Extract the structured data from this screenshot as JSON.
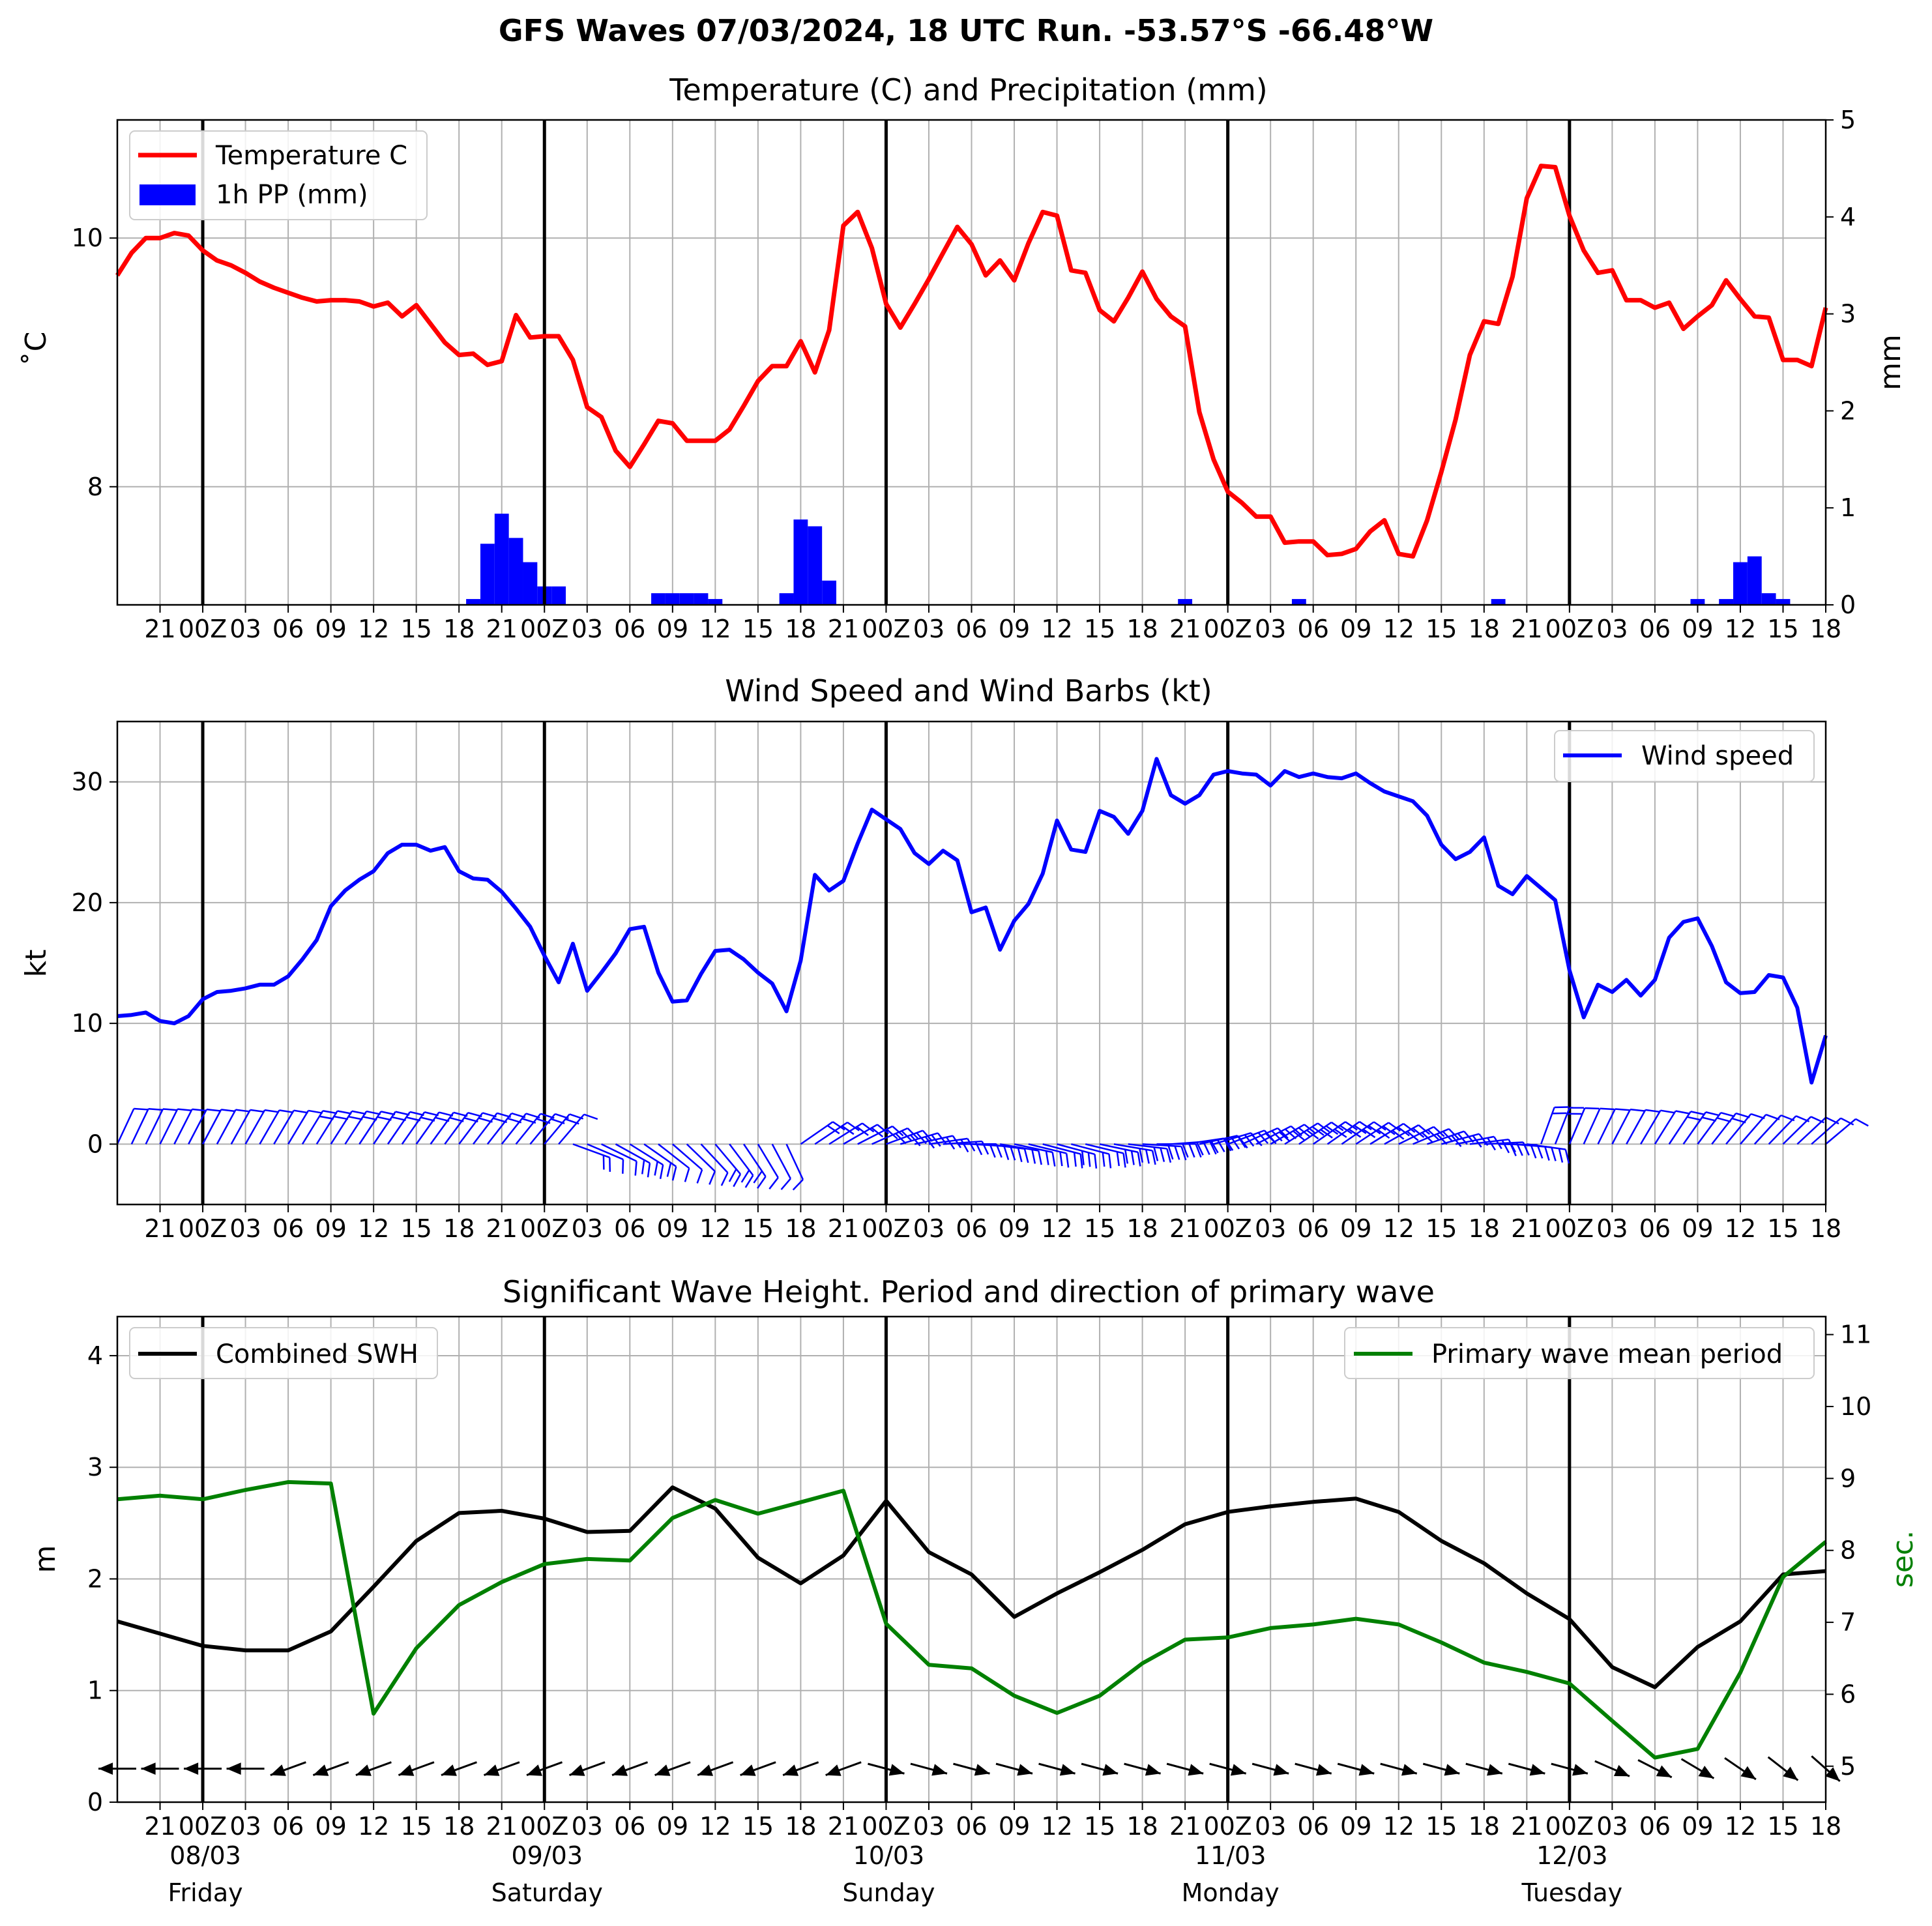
{
  "figure_title": "GFS Waves 07/03/2024, 18 UTC Run. -53.57°S -66.48°W",
  "colors": {
    "temperature": "#ff0000",
    "precipitation": "#0000ff",
    "wind": "#0000ff",
    "swh": "#000000",
    "period": "#008000",
    "grid": "#b0b0b0",
    "day_line": "#000000"
  },
  "time_axis": {
    "tick_labels_hourly": [
      "21",
      "00Z",
      "03",
      "06",
      "09",
      "12",
      "15",
      "18",
      "21",
      "00Z",
      "03",
      "06",
      "09",
      "12",
      "15",
      "18",
      "21",
      "00Z",
      "03",
      "06",
      "09",
      "12",
      "15",
      "18",
      "21",
      "00Z",
      "03",
      "06",
      "09",
      "12",
      "15",
      "18",
      "21",
      "00Z",
      "03",
      "06",
      "09",
      "12",
      "15",
      "18"
    ],
    "tick_hours": [
      3,
      6,
      9,
      12,
      15,
      18,
      21,
      24,
      27,
      30,
      33,
      36,
      39,
      42,
      45,
      48,
      51,
      54,
      57,
      60,
      63,
      66,
      69,
      72,
      75,
      78,
      81,
      84,
      87,
      90,
      93,
      96,
      99,
      102,
      105,
      108,
      111,
      114,
      117,
      120
    ],
    "xlim_hours": [
      0,
      120
    ],
    "day_boundaries_hours": [
      6,
      30,
      54,
      78,
      102
    ],
    "dates": [
      "08/03",
      "09/03",
      "10/03",
      "11/03",
      "12/03"
    ],
    "weekdays": [
      "Friday",
      "Saturday",
      "Sunday",
      "Monday",
      "Tuesday"
    ]
  },
  "chart_data": [
    {
      "type": "line",
      "title": "Temperature (C) and Precipitation (mm)",
      "ylabel": "$^\\circ$C",
      "ylabel_text": "˚C",
      "y2label": "mm",
      "ylim": [
        7.05,
        10.95
      ],
      "yticks": [
        "8",
        "10"
      ],
      "ytick_values": [
        8,
        10
      ],
      "y2lim": [
        0,
        5
      ],
      "y2ticks": [
        "0",
        "1",
        "2",
        "3",
        "4",
        "5"
      ],
      "legend": {
        "placement": "top-left",
        "entries": [
          "Temperature C",
          "1h PP (mm)"
        ]
      },
      "grid": true,
      "series": [
        {
          "name": "Temperature C",
          "x_start": 0,
          "x_step": 1,
          "values": [
            9.7,
            9.88,
            10.0,
            10.0,
            10.04,
            10.02,
            9.9,
            9.82,
            9.78,
            9.72,
            9.65,
            9.6,
            9.56,
            9.52,
            9.49,
            9.5,
            9.5,
            9.49,
            9.45,
            9.48,
            9.37,
            9.46,
            9.31,
            9.16,
            9.06,
            9.07,
            8.98,
            9.01,
            9.38,
            9.2,
            9.21,
            9.21,
            9.02,
            8.64,
            8.56,
            8.29,
            8.16,
            8.34,
            8.53,
            8.51,
            8.37,
            8.37,
            8.37,
            8.46,
            8.65,
            8.85,
            8.97,
            8.97,
            9.17,
            8.92,
            9.26,
            10.1,
            10.21,
            9.92,
            9.47,
            9.28,
            9.47,
            9.67,
            9.88,
            10.09,
            9.95,
            9.7,
            9.82,
            9.66,
            9.96,
            10.21,
            10.18,
            9.74,
            9.72,
            9.42,
            9.33,
            9.52,
            9.73,
            9.51,
            9.37,
            9.29,
            8.6,
            8.22,
            7.96,
            7.87,
            7.76,
            7.76,
            7.55,
            7.56,
            7.56,
            7.45,
            7.46,
            7.5,
            7.64,
            7.73,
            7.46,
            7.44,
            7.73,
            8.12,
            8.54,
            9.06,
            9.33,
            9.31,
            9.69,
            10.32,
            10.58,
            10.57,
            10.18,
            9.9,
            9.72,
            9.74,
            9.5,
            9.5,
            9.44,
            9.48,
            9.27,
            9.37,
            9.46,
            9.66,
            9.51,
            9.37,
            9.36,
            9.02,
            9.02,
            8.97,
            9.44
          ]
        },
        {
          "name": "1h PP (mm)",
          "type": "bar",
          "x": [
            25,
            26,
            27,
            28,
            29,
            30,
            31,
            38,
            39,
            40,
            41,
            42,
            47,
            48,
            49,
            50,
            75,
            83,
            97,
            111,
            113,
            114,
            115,
            116,
            117
          ],
          "values": [
            0.06,
            0.63,
            0.94,
            0.69,
            0.44,
            0.19,
            0.19,
            0.12,
            0.12,
            0.12,
            0.12,
            0.06,
            0.12,
            0.88,
            0.81,
            0.25,
            0.06,
            0.06,
            0.06,
            0.06,
            0.06,
            0.44,
            0.5,
            0.12,
            0.06
          ]
        }
      ]
    },
    {
      "type": "line",
      "title": "Wind Speed and Wind Barbs (kt)",
      "ylabel": "kt",
      "ylim": [
        -5,
        35
      ],
      "yticks": [
        "0",
        "10",
        "20",
        "30"
      ],
      "ytick_values": [
        0,
        10,
        20,
        30
      ],
      "legend": {
        "placement": "top-right",
        "entries": [
          "Wind speed"
        ]
      },
      "grid": true,
      "series": [
        {
          "name": "Wind speed",
          "x_start": 0,
          "x_step": 1,
          "values": [
            10.6,
            10.7,
            10.9,
            10.2,
            10.0,
            10.6,
            12.0,
            12.6,
            12.7,
            12.9,
            13.2,
            13.2,
            13.9,
            15.3,
            16.9,
            19.7,
            21.0,
            21.9,
            22.6,
            24.1,
            24.8,
            24.8,
            24.3,
            24.6,
            22.6,
            22.0,
            21.9,
            20.9,
            19.5,
            18.0,
            15.6,
            13.4,
            16.6,
            12.7,
            14.2,
            15.8,
            17.8,
            18.0,
            14.2,
            11.8,
            11.9,
            14.1,
            16.0,
            16.1,
            15.3,
            14.2,
            13.3,
            11.0,
            15.2,
            22.3,
            21.0,
            21.8,
            24.9,
            27.7,
            26.9,
            26.1,
            24.1,
            23.2,
            24.3,
            23.5,
            19.2,
            19.6,
            16.1,
            18.5,
            19.9,
            22.4,
            26.8,
            24.4,
            24.2,
            27.6,
            27.1,
            25.7,
            27.6,
            31.9,
            28.9,
            28.2,
            28.9,
            30.6,
            30.9,
            30.7,
            30.6,
            29.7,
            30.9,
            30.4,
            30.7,
            30.4,
            30.3,
            30.7,
            29.9,
            29.2,
            28.8,
            28.4,
            27.2,
            24.8,
            23.6,
            24.2,
            25.4,
            21.4,
            20.7,
            22.2,
            21.2,
            20.2,
            14.4,
            10.5,
            13.2,
            12.6,
            13.6,
            12.3,
            13.6,
            17.1,
            18.4,
            18.7,
            16.4,
            13.4,
            12.5,
            12.6,
            14.0,
            13.8,
            11.3,
            5.1,
            9.0
          ]
        }
      ],
      "wind_barbs": {
        "y_level_kt": 0,
        "times_hours_step": 1
      }
    },
    {
      "type": "line",
      "title": "Significant Wave Height. Period and direction of primary wave",
      "ylabel": "m",
      "y2label": "sec.",
      "ylim": [
        0,
        4.35
      ],
      "yticks": [
        "0",
        "1",
        "2",
        "3",
        "4"
      ],
      "ytick_values": [
        0,
        1,
        2,
        3,
        4
      ],
      "y2lim": [
        4.5,
        11.25
      ],
      "y2ticks": [
        "5",
        "6",
        "7",
        "8",
        "9",
        "10",
        "11"
      ],
      "y2tick_values": [
        5,
        6,
        7,
        8,
        9,
        10,
        11
      ],
      "legend": {
        "placement": "top-left",
        "entries": [
          "Combined SWH"
        ]
      },
      "legend2": {
        "placement": "top-right",
        "entries": [
          "Primary wave mean period"
        ]
      },
      "grid": true,
      "series": [
        {
          "name": "Combined SWH",
          "x": [
            0,
            3,
            6,
            9,
            12,
            15,
            18,
            21,
            24,
            27,
            30,
            33,
            36,
            39,
            42,
            45,
            48,
            51,
            54,
            57,
            60,
            63,
            66,
            69,
            72,
            75,
            78,
            81,
            84,
            87,
            90,
            93,
            96,
            99,
            102,
            105,
            108,
            111,
            114,
            117,
            120
          ],
          "values": [
            1.62,
            1.51,
            1.4,
            1.36,
            1.36,
            1.53,
            1.93,
            2.34,
            2.59,
            2.61,
            2.54,
            2.42,
            2.43,
            2.82,
            2.63,
            2.19,
            1.96,
            2.21,
            2.7,
            2.24,
            2.04,
            1.66,
            1.87,
            2.06,
            2.26,
            2.49,
            2.6,
            2.65,
            2.69,
            2.72,
            2.6,
            2.34,
            2.14,
            1.87,
            1.64,
            1.21,
            1.03,
            1.39,
            1.62,
            2.04,
            2.07
          ]
        },
        {
          "name": "Primary wave mean period",
          "x": [
            0,
            3,
            6,
            9,
            12,
            15,
            18,
            21,
            24,
            27,
            30,
            33,
            36,
            39,
            42,
            45,
            48,
            51,
            54,
            57,
            60,
            63,
            66,
            69,
            72,
            75,
            78,
            81,
            84,
            87,
            90,
            93,
            96,
            99,
            102,
            105,
            108,
            111,
            114,
            117,
            120
          ],
          "values": [
            8.71,
            8.76,
            8.71,
            8.84,
            8.95,
            8.93,
            5.73,
            6.64,
            7.24,
            7.56,
            7.81,
            7.88,
            7.86,
            8.45,
            8.7,
            8.51,
            8.67,
            8.83,
            6.98,
            6.41,
            6.36,
            5.98,
            5.74,
            5.98,
            6.43,
            6.76,
            6.79,
            6.92,
            6.97,
            7.05,
            6.97,
            6.72,
            6.44,
            6.31,
            6.15,
            5.63,
            5.12,
            5.24,
            6.3,
            7.63,
            8.12
          ]
        }
      ],
      "wave_direction_arrows": {
        "y_level_m": 0.3,
        "times_hours_step": 3
      }
    }
  ]
}
